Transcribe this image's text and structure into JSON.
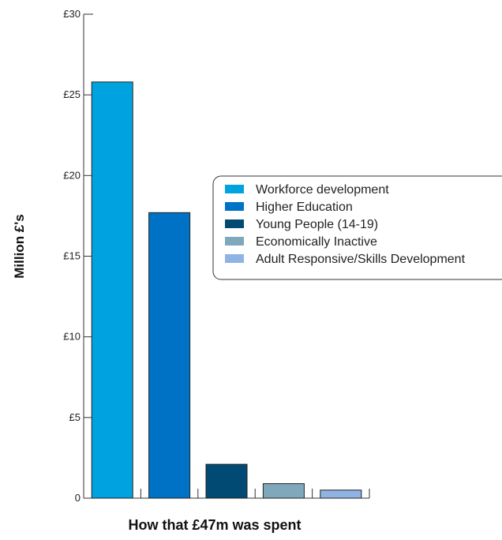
{
  "chart_data": {
    "type": "bar",
    "categories": [
      "Workforce development",
      "Higher Education",
      "Young People (14-19)",
      "Economically Inactive",
      "Adult Responsive/Skills Development"
    ],
    "values": [
      25.8,
      17.7,
      2.1,
      0.9,
      0.5
    ],
    "colors": [
      "#00a3e0",
      "#0072c6",
      "#004a73",
      "#7fa8bb",
      "#8fb4e3"
    ],
    "ylim": [
      0,
      30
    ],
    "ytick_values": [
      0,
      5,
      10,
      15,
      20,
      25,
      30
    ],
    "ytick_labels": [
      "0",
      "£5",
      "£10",
      "£15",
      "£20",
      "£25",
      "£30"
    ],
    "ylabel": "Million £'s",
    "xlabel": "How that £47m was spent",
    "legend": {
      "position": "right",
      "entries": [
        "Workforce development",
        "Higher Education",
        "Young People (14-19)",
        "Economically Inactive",
        "Adult Responsive/Skills Development"
      ]
    }
  }
}
